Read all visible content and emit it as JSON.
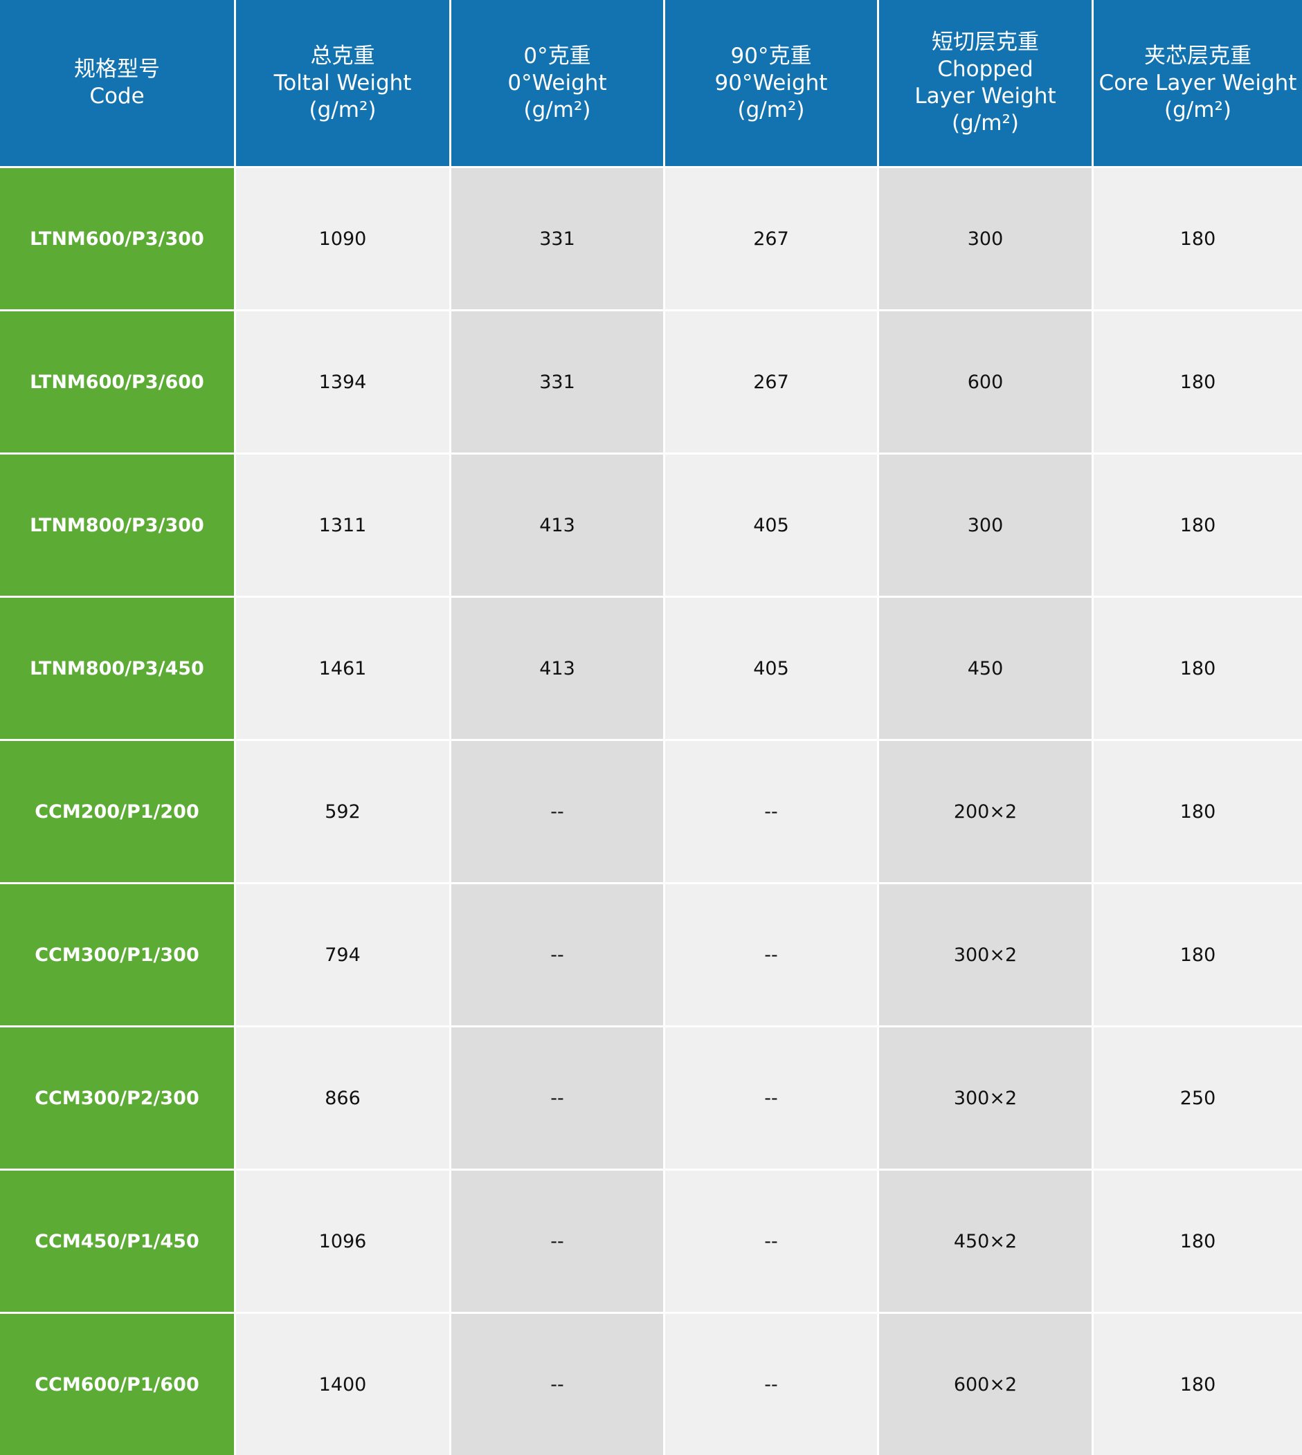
{
  "header": [
    {
      "lines": [
        "规格型号",
        "Code"
      ]
    },
    {
      "lines": [
        "总克重",
        "Toltal Weight",
        "(g/m²)"
      ]
    },
    {
      "lines": [
        "0°克重",
        "0°Weight",
        "(g/m²)"
      ]
    },
    {
      "lines": [
        "90°克重",
        "90°Weight",
        "(g/m²)"
      ]
    },
    {
      "lines": [
        "短切层克重",
        "Chopped",
        "Layer Weight",
        "(g/m²)"
      ]
    },
    {
      "lines": [
        "夹芯层克重",
        "Core Layer Weight",
        "(g/m²)"
      ]
    }
  ],
  "rows": [
    [
      "LTNM600/P3/300",
      "1090",
      "331",
      "267",
      "300",
      "180"
    ],
    [
      "LTNM600/P3/600",
      "1394",
      "331",
      "267",
      "600",
      "180"
    ],
    [
      "LTNM800/P3/300",
      "1311",
      "413",
      "405",
      "300",
      "180"
    ],
    [
      "LTNM800/P3/450",
      "1461",
      "413",
      "405",
      "450",
      "180"
    ],
    [
      "CCM200/P1/200",
      "592",
      "--",
      "--",
      "200×2",
      "180"
    ],
    [
      "CCM300/P1/300",
      "794",
      "--",
      "--",
      "300×2",
      "180"
    ],
    [
      "CCM300/P2/300",
      "866",
      "--",
      "--",
      "300×2",
      "250"
    ],
    [
      "CCM450/P1/450",
      "1096",
      "--",
      "--",
      "450×2",
      "180"
    ],
    [
      "CCM600/P1/600",
      "1400",
      "--",
      "--",
      "600×2",
      "180"
    ]
  ],
  "colors": {
    "header": "#1373b1",
    "code": "#5bab35",
    "light": "#f0f0f0",
    "dark": "#dcdddc"
  }
}
